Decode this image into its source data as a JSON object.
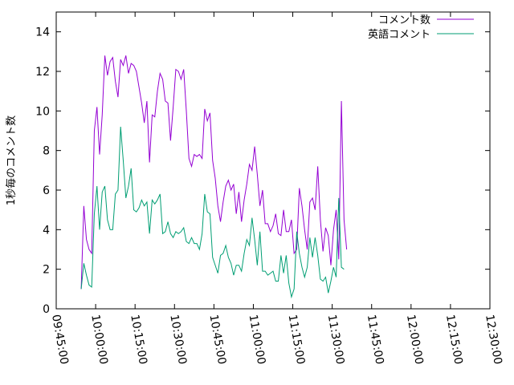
{
  "chart_data": {
    "type": "line",
    "title": "",
    "xlabel": "",
    "ylabel": "1秒毎のコメント数",
    "xlim": [
      "09:45:00",
      "12:30:00"
    ],
    "ylim": [
      0,
      15
    ],
    "y_ticks": [
      0,
      2,
      4,
      6,
      8,
      10,
      12,
      14
    ],
    "x_ticks": [
      "09:45:00",
      "10:00:00",
      "10:15:00",
      "10:30:00",
      "10:45:00",
      "11:00:00",
      "11:15:00",
      "11:30:00",
      "11:45:00",
      "12:00:00",
      "12:15:00",
      "12:30:00"
    ],
    "grid": false,
    "legend_position": "top-right",
    "series": [
      {
        "name": "コメント数",
        "color": "#9400d3",
        "points": [
          [
            "09:54:30",
            1.0
          ],
          [
            "09:55:30",
            5.2
          ],
          [
            "09:56:30",
            3.5
          ],
          [
            "09:57:30",
            3.0
          ],
          [
            "09:58:30",
            2.8
          ],
          [
            "09:59:30",
            9.0
          ],
          [
            "10:00:30",
            10.2
          ],
          [
            "10:01:30",
            7.8
          ],
          [
            "10:02:30",
            9.8
          ],
          [
            "10:03:30",
            12.8
          ],
          [
            "10:04:30",
            11.8
          ],
          [
            "10:05:30",
            12.5
          ],
          [
            "10:06:30",
            12.7
          ],
          [
            "10:07:30",
            11.5
          ],
          [
            "10:08:30",
            10.7
          ],
          [
            "10:09:30",
            12.6
          ],
          [
            "10:10:30",
            12.3
          ],
          [
            "10:11:30",
            12.8
          ],
          [
            "10:12:30",
            11.9
          ],
          [
            "10:13:30",
            12.4
          ],
          [
            "10:14:30",
            12.3
          ],
          [
            "10:15:30",
            12.0
          ],
          [
            "10:16:30",
            11.2
          ],
          [
            "10:17:30",
            10.4
          ],
          [
            "10:18:30",
            9.4
          ],
          [
            "10:19:30",
            10.5
          ],
          [
            "10:20:30",
            7.4
          ],
          [
            "10:21:30",
            9.8
          ],
          [
            "10:22:30",
            9.7
          ],
          [
            "10:23:30",
            11.0
          ],
          [
            "10:24:30",
            11.9
          ],
          [
            "10:25:30",
            11.6
          ],
          [
            "10:26:30",
            10.5
          ],
          [
            "10:27:30",
            10.4
          ],
          [
            "10:28:30",
            8.5
          ],
          [
            "10:29:30",
            10.2
          ],
          [
            "10:30:30",
            12.1
          ],
          [
            "10:31:30",
            12.0
          ],
          [
            "10:32:30",
            11.6
          ],
          [
            "10:33:30",
            12.1
          ],
          [
            "10:34:30",
            10.0
          ],
          [
            "10:35:30",
            7.6
          ],
          [
            "10:36:30",
            7.2
          ],
          [
            "10:37:30",
            7.8
          ],
          [
            "10:38:30",
            7.7
          ],
          [
            "10:39:30",
            7.8
          ],
          [
            "10:40:30",
            7.6
          ],
          [
            "10:41:30",
            10.1
          ],
          [
            "10:42:30",
            9.5
          ],
          [
            "10:43:30",
            9.9
          ],
          [
            "10:44:30",
            7.5
          ],
          [
            "10:45:30",
            6.6
          ],
          [
            "10:46:30",
            5.2
          ],
          [
            "10:47:30",
            4.4
          ],
          [
            "10:48:30",
            5.4
          ],
          [
            "10:49:30",
            6.2
          ],
          [
            "10:50:30",
            6.5
          ],
          [
            "10:51:30",
            6.0
          ],
          [
            "10:52:30",
            6.3
          ],
          [
            "10:53:30",
            4.8
          ],
          [
            "10:54:30",
            5.9
          ],
          [
            "10:55:30",
            4.4
          ],
          [
            "10:56:30",
            5.5
          ],
          [
            "10:57:30",
            6.3
          ],
          [
            "10:58:30",
            7.3
          ],
          [
            "10:59:30",
            7.0
          ],
          [
            "11:00:30",
            8.2
          ],
          [
            "11:01:30",
            6.8
          ],
          [
            "11:02:30",
            5.2
          ],
          [
            "11:03:30",
            6.0
          ],
          [
            "11:04:30",
            4.3
          ],
          [
            "11:05:30",
            4.3
          ],
          [
            "11:06:30",
            3.9
          ],
          [
            "11:07:30",
            4.2
          ],
          [
            "11:08:30",
            4.8
          ],
          [
            "11:09:30",
            3.8
          ],
          [
            "11:10:30",
            3.7
          ],
          [
            "11:11:30",
            5.0
          ],
          [
            "11:12:30",
            3.9
          ],
          [
            "11:13:30",
            3.9
          ],
          [
            "11:14:30",
            4.5
          ],
          [
            "11:15:30",
            2.8
          ],
          [
            "11:16:30",
            3.0
          ],
          [
            "11:17:30",
            6.1
          ],
          [
            "11:18:30",
            5.2
          ],
          [
            "11:19:30",
            4.0
          ],
          [
            "11:20:30",
            3.0
          ],
          [
            "11:21:30",
            5.4
          ],
          [
            "11:22:30",
            5.6
          ],
          [
            "11:23:30",
            5.0
          ],
          [
            "11:24:30",
            7.2
          ],
          [
            "11:25:30",
            4.5
          ],
          [
            "11:26:30",
            2.9
          ],
          [
            "11:27:30",
            4.1
          ],
          [
            "11:28:30",
            3.7
          ],
          [
            "11:29:30",
            2.2
          ],
          [
            "11:30:30",
            4.0
          ],
          [
            "11:31:30",
            5.0
          ],
          [
            "11:32:30",
            2.5
          ],
          [
            "11:33:30",
            10.5
          ],
          [
            "11:34:30",
            4.5
          ],
          [
            "11:35:30",
            3.0
          ]
        ]
      },
      {
        "name": "英語コメント",
        "color": "#009e73",
        "points": [
          [
            "09:54:30",
            1.0
          ],
          [
            "09:55:30",
            2.3
          ],
          [
            "09:56:30",
            1.7
          ],
          [
            "09:57:30",
            1.2
          ],
          [
            "09:58:30",
            1.1
          ],
          [
            "09:59:30",
            4.8
          ],
          [
            "10:00:30",
            6.2
          ],
          [
            "10:01:30",
            4.0
          ],
          [
            "10:02:30",
            5.9
          ],
          [
            "10:03:30",
            6.2
          ],
          [
            "10:04:30",
            4.5
          ],
          [
            "10:05:30",
            4.0
          ],
          [
            "10:06:30",
            4.0
          ],
          [
            "10:07:30",
            5.8
          ],
          [
            "10:08:30",
            6.0
          ],
          [
            "10:09:30",
            9.2
          ],
          [
            "10:10:30",
            7.5
          ],
          [
            "10:11:30",
            5.6
          ],
          [
            "10:12:30",
            6.2
          ],
          [
            "10:13:30",
            7.1
          ],
          [
            "10:14:30",
            5.0
          ],
          [
            "10:15:30",
            4.9
          ],
          [
            "10:16:30",
            5.1
          ],
          [
            "10:17:30",
            5.5
          ],
          [
            "10:18:30",
            5.2
          ],
          [
            "10:19:30",
            5.4
          ],
          [
            "10:20:30",
            3.8
          ],
          [
            "10:21:30",
            5.5
          ],
          [
            "10:22:30",
            5.3
          ],
          [
            "10:23:30",
            5.5
          ],
          [
            "10:24:30",
            5.8
          ],
          [
            "10:25:30",
            3.8
          ],
          [
            "10:26:30",
            3.9
          ],
          [
            "10:27:30",
            4.4
          ],
          [
            "10:28:30",
            3.8
          ],
          [
            "10:29:30",
            3.6
          ],
          [
            "10:30:30",
            3.9
          ],
          [
            "10:31:30",
            3.8
          ],
          [
            "10:32:30",
            3.9
          ],
          [
            "10:33:30",
            4.1
          ],
          [
            "10:34:30",
            3.4
          ],
          [
            "10:35:30",
            3.3
          ],
          [
            "10:36:30",
            3.6
          ],
          [
            "10:37:30",
            3.3
          ],
          [
            "10:38:30",
            3.3
          ],
          [
            "10:39:30",
            3.0
          ],
          [
            "10:40:30",
            3.8
          ],
          [
            "10:41:30",
            5.8
          ],
          [
            "10:42:30",
            4.9
          ],
          [
            "10:43:30",
            4.8
          ],
          [
            "10:44:30",
            2.6
          ],
          [
            "10:45:30",
            2.2
          ],
          [
            "10:46:30",
            1.8
          ],
          [
            "10:47:30",
            2.7
          ],
          [
            "10:48:30",
            2.8
          ],
          [
            "10:49:30",
            3.2
          ],
          [
            "10:50:30",
            2.6
          ],
          [
            "10:51:30",
            2.3
          ],
          [
            "10:52:30",
            1.7
          ],
          [
            "10:53:30",
            2.2
          ],
          [
            "10:54:30",
            2.2
          ],
          [
            "10:55:30",
            1.9
          ],
          [
            "10:56:30",
            2.8
          ],
          [
            "10:57:30",
            3.5
          ],
          [
            "10:58:30",
            3.2
          ],
          [
            "10:59:30",
            4.6
          ],
          [
            "11:00:30",
            3.5
          ],
          [
            "11:01:30",
            2.2
          ],
          [
            "11:02:30",
            3.9
          ],
          [
            "11:03:30",
            1.9
          ],
          [
            "11:04:30",
            1.9
          ],
          [
            "11:05:30",
            1.7
          ],
          [
            "11:06:30",
            1.8
          ],
          [
            "11:07:30",
            1.9
          ],
          [
            "11:08:30",
            1.4
          ],
          [
            "11:09:30",
            1.4
          ],
          [
            "11:10:30",
            2.7
          ],
          [
            "11:11:30",
            1.8
          ],
          [
            "11:12:30",
            2.7
          ],
          [
            "11:13:30",
            1.3
          ],
          [
            "11:14:30",
            0.6
          ],
          [
            "11:15:30",
            1.0
          ],
          [
            "11:16:30",
            3.9
          ],
          [
            "11:17:30",
            2.8
          ],
          [
            "11:18:30",
            2.1
          ],
          [
            "11:19:30",
            1.6
          ],
          [
            "11:20:30",
            2.1
          ],
          [
            "11:21:30",
            3.6
          ],
          [
            "11:22:30",
            2.6
          ],
          [
            "11:23:30",
            3.6
          ],
          [
            "11:24:30",
            2.7
          ],
          [
            "11:25:30",
            1.5
          ],
          [
            "11:26:30",
            1.4
          ],
          [
            "11:27:30",
            1.6
          ],
          [
            "11:28:30",
            0.8
          ],
          [
            "11:29:30",
            1.4
          ],
          [
            "11:30:30",
            2.1
          ],
          [
            "11:31:30",
            1.6
          ],
          [
            "11:32:30",
            5.6
          ],
          [
            "11:33:30",
            2.1
          ],
          [
            "11:34:30",
            2.0
          ]
        ]
      }
    ]
  }
}
